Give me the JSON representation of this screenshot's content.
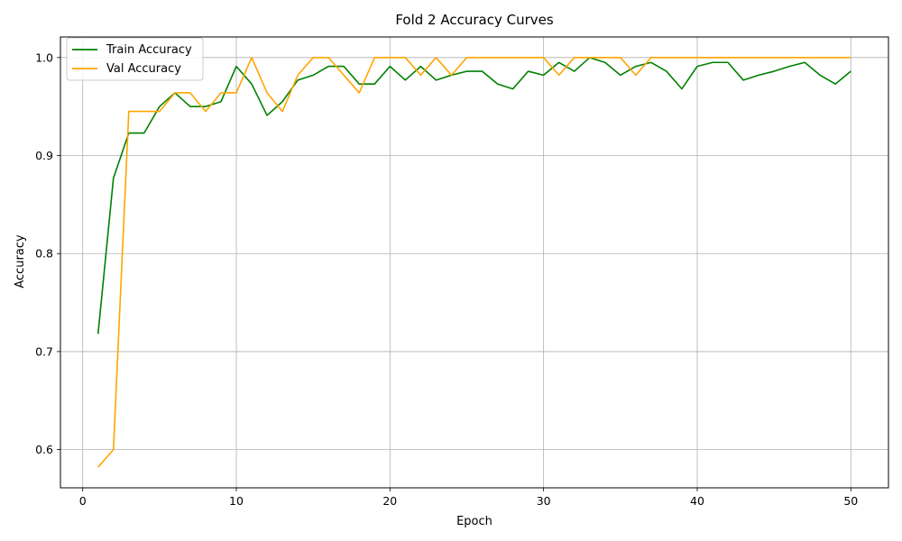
{
  "chart_data": {
    "type": "line",
    "title": "Fold 2 Accuracy Curves",
    "xlabel": "Epoch",
    "ylabel": "Accuracy",
    "xlim": [
      -1.45,
      52.45
    ],
    "ylim": [
      0.561,
      1.021
    ],
    "xticks": [
      0,
      10,
      20,
      30,
      40,
      50
    ],
    "xtick_labels": [
      "0",
      "10",
      "20",
      "30",
      "40",
      "50"
    ],
    "yticks": [
      0.6,
      0.7,
      0.8,
      0.9,
      1.0
    ],
    "ytick_labels": [
      "0.6",
      "0.7",
      "0.8",
      "0.9",
      "1.0"
    ],
    "grid": true,
    "legend_position": "top-left",
    "x": [
      1,
      2,
      3,
      4,
      5,
      6,
      7,
      8,
      9,
      10,
      11,
      12,
      13,
      14,
      15,
      16,
      17,
      18,
      19,
      20,
      21,
      22,
      23,
      24,
      25,
      26,
      27,
      28,
      29,
      30,
      31,
      32,
      33,
      34,
      35,
      36,
      37,
      38,
      39,
      40,
      41,
      42,
      43,
      44,
      45,
      46,
      47,
      48,
      49,
      50
    ],
    "series": [
      {
        "name": "Train Accuracy",
        "color": "#008000",
        "values": [
          0.718,
          0.877,
          0.923,
          0.923,
          0.95,
          0.964,
          0.95,
          0.95,
          0.955,
          0.991,
          0.973,
          0.941,
          0.955,
          0.977,
          0.982,
          0.991,
          0.991,
          0.973,
          0.973,
          0.991,
          0.977,
          0.991,
          0.977,
          0.982,
          0.986,
          0.986,
          0.973,
          0.968,
          0.986,
          0.982,
          0.995,
          0.986,
          1.0,
          0.995,
          0.982,
          0.991,
          0.995,
          0.986,
          0.968,
          0.991,
          0.995,
          0.995,
          0.977,
          0.982,
          0.986,
          0.991,
          0.995,
          0.982,
          0.973,
          0.986
        ]
      },
      {
        "name": "Val Accuracy",
        "color": "#FFA500",
        "values": [
          0.582,
          0.6,
          0.945,
          0.945,
          0.945,
          0.964,
          0.964,
          0.945,
          0.964,
          0.964,
          1.0,
          0.964,
          0.945,
          0.982,
          1.0,
          1.0,
          0.982,
          0.964,
          1.0,
          1.0,
          1.0,
          0.982,
          1.0,
          0.982,
          1.0,
          1.0,
          1.0,
          1.0,
          1.0,
          1.0,
          0.982,
          1.0,
          1.0,
          1.0,
          1.0,
          0.982,
          1.0,
          1.0,
          1.0,
          1.0,
          1.0,
          1.0,
          1.0,
          1.0,
          1.0,
          1.0,
          1.0,
          1.0,
          1.0,
          1.0
        ]
      }
    ]
  }
}
